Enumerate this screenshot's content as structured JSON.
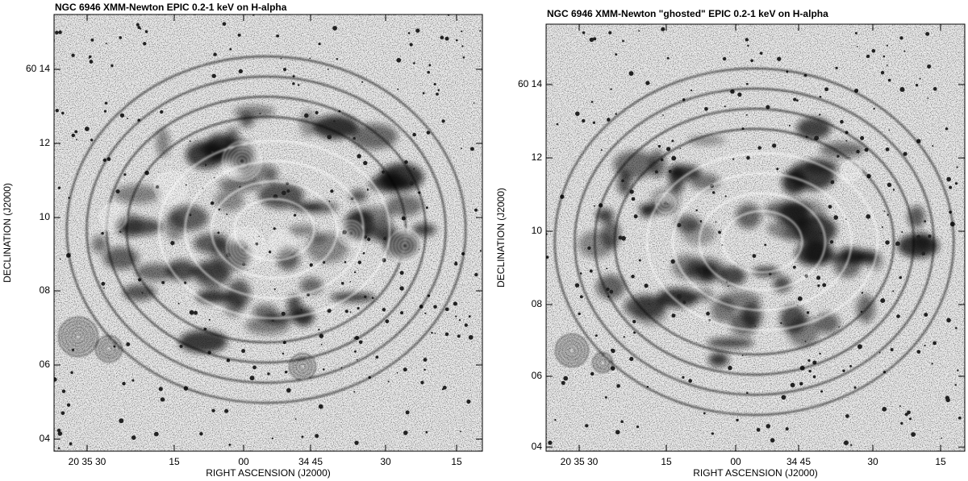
{
  "panels": [
    {
      "title": "NGC 6946 XMM-Newton EPIC 0.2-1 keV on H-alpha",
      "x_label": "RIGHT ASCENSION (J2000)",
      "y_label": "DECLINATION (J2000)",
      "x_ticks": [
        "20 35 30",
        "15",
        "00",
        "34 45",
        "30",
        "15"
      ],
      "y_ticks": [
        "60 14",
        "12",
        "10",
        "08",
        "06",
        "04"
      ]
    },
    {
      "title": "NGC 6946 XMM-Newton \"ghosted\" EPIC 0.2-1 keV on H-alpha",
      "x_label": "RIGHT ASCENSION (J2000)",
      "y_label": "DECLINATION (J2000)",
      "x_ticks": [
        "20 35 30",
        "15",
        "00",
        "34 45",
        "30",
        "15"
      ],
      "y_ticks": [
        "60 14",
        "12",
        "10",
        "08",
        "06",
        "04"
      ]
    }
  ]
}
